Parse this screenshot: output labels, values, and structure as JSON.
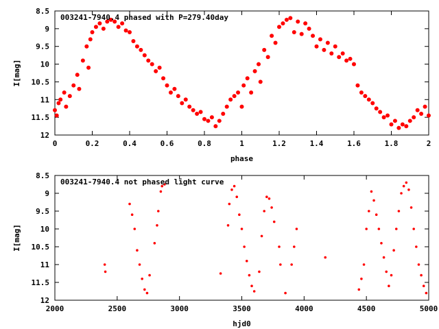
{
  "chart_data": [
    {
      "type": "scatter",
      "title": "003241-7940.4 phased with P=279.40day",
      "xlabel": "phase",
      "ylabel": "I[mag]",
      "xlim": [
        0,
        2
      ],
      "ylim": [
        12,
        8.5
      ],
      "y_inverted": true,
      "xticks": [
        "0",
        "0.2",
        "0.4",
        "0.6",
        "0.8",
        "1",
        "1.2",
        "1.4",
        "1.6",
        "1.8",
        "2"
      ],
      "yticks": [
        "8.5",
        "9",
        "9.5",
        "10",
        "10.5",
        "11",
        "11.5",
        "12"
      ],
      "marker_color": "#ff0000",
      "grid": false,
      "series": [
        {
          "points": [
            [
              0.0,
              11.3
            ],
            [
              0.01,
              11.45
            ],
            [
              0.02,
              11.1
            ],
            [
              0.03,
              11.0
            ],
            [
              0.05,
              10.8
            ],
            [
              0.06,
              11.2
            ],
            [
              0.08,
              10.9
            ],
            [
              0.1,
              10.6
            ],
            [
              0.12,
              10.3
            ],
            [
              0.13,
              10.7
            ],
            [
              0.15,
              9.9
            ],
            [
              0.17,
              9.5
            ],
            [
              0.18,
              10.1
            ],
            [
              0.19,
              9.3
            ],
            [
              0.2,
              9.1
            ],
            [
              0.22,
              8.95
            ],
            [
              0.24,
              8.85
            ],
            [
              0.26,
              9.0
            ],
            [
              0.28,
              8.8
            ],
            [
              0.3,
              8.75
            ],
            [
              0.32,
              8.8
            ],
            [
              0.34,
              8.95
            ],
            [
              0.36,
              8.85
            ],
            [
              0.38,
              9.05
            ],
            [
              0.4,
              9.1
            ],
            [
              0.42,
              9.35
            ],
            [
              0.44,
              9.5
            ],
            [
              0.46,
              9.6
            ],
            [
              0.48,
              9.75
            ],
            [
              0.5,
              9.9
            ],
            [
              0.52,
              10.0
            ],
            [
              0.54,
              10.2
            ],
            [
              0.56,
              10.1
            ],
            [
              0.58,
              10.4
            ],
            [
              0.6,
              10.6
            ],
            [
              0.62,
              10.8
            ],
            [
              0.64,
              10.7
            ],
            [
              0.66,
              10.9
            ],
            [
              0.68,
              11.1
            ],
            [
              0.7,
              11.0
            ],
            [
              0.72,
              11.2
            ],
            [
              0.74,
              11.3
            ],
            [
              0.76,
              11.4
            ],
            [
              0.78,
              11.35
            ],
            [
              0.8,
              11.55
            ],
            [
              0.82,
              11.6
            ],
            [
              0.84,
              11.5
            ],
            [
              0.86,
              11.75
            ],
            [
              0.88,
              11.6
            ],
            [
              0.9,
              11.4
            ],
            [
              0.92,
              11.2
            ],
            [
              0.94,
              11.0
            ],
            [
              0.96,
              10.9
            ],
            [
              0.98,
              10.8
            ],
            [
              1.0,
              11.2
            ],
            [
              1.01,
              10.6
            ],
            [
              1.03,
              10.4
            ],
            [
              1.05,
              10.8
            ],
            [
              1.07,
              10.2
            ],
            [
              1.09,
              10.0
            ],
            [
              1.1,
              10.5
            ],
            [
              1.12,
              9.6
            ],
            [
              1.14,
              9.8
            ],
            [
              1.16,
              9.2
            ],
            [
              1.18,
              9.4
            ],
            [
              1.2,
              8.95
            ],
            [
              1.22,
              8.85
            ],
            [
              1.24,
              8.75
            ],
            [
              1.26,
              8.7
            ],
            [
              1.28,
              9.1
            ],
            [
              1.3,
              8.8
            ],
            [
              1.32,
              9.15
            ],
            [
              1.34,
              8.85
            ],
            [
              1.36,
              9.0
            ],
            [
              1.38,
              9.2
            ],
            [
              1.4,
              9.5
            ],
            [
              1.42,
              9.3
            ],
            [
              1.44,
              9.6
            ],
            [
              1.46,
              9.4
            ],
            [
              1.48,
              9.7
            ],
            [
              1.5,
              9.5
            ],
            [
              1.52,
              9.8
            ],
            [
              1.54,
              9.7
            ],
            [
              1.56,
              9.9
            ],
            [
              1.58,
              9.85
            ],
            [
              1.6,
              10.0
            ],
            [
              1.62,
              10.6
            ],
            [
              1.64,
              10.8
            ],
            [
              1.66,
              10.9
            ],
            [
              1.68,
              11.0
            ],
            [
              1.7,
              11.1
            ],
            [
              1.72,
              11.25
            ],
            [
              1.74,
              11.35
            ],
            [
              1.76,
              11.5
            ],
            [
              1.78,
              11.45
            ],
            [
              1.8,
              11.7
            ],
            [
              1.82,
              11.6
            ],
            [
              1.84,
              11.8
            ],
            [
              1.86,
              11.7
            ],
            [
              1.88,
              11.75
            ],
            [
              1.9,
              11.6
            ],
            [
              1.92,
              11.5
            ],
            [
              1.94,
              11.3
            ],
            [
              1.96,
              11.4
            ],
            [
              1.98,
              11.2
            ],
            [
              2.0,
              11.45
            ]
          ]
        }
      ]
    },
    {
      "type": "scatter",
      "title": "003241-7940.4 not phased light curve",
      "xlabel": "hjd0",
      "ylabel": "I[mag]",
      "xlim": [
        2000,
        5000
      ],
      "ylim": [
        12,
        8.5
      ],
      "y_inverted": true,
      "xticks": [
        "2000",
        "2500",
        "3000",
        "3500",
        "4000",
        "4500",
        "5000"
      ],
      "yticks": [
        "8.5",
        "9",
        "9.5",
        "10",
        "10.5",
        "11",
        "11.5",
        "12"
      ],
      "marker_color": "#ff0000",
      "grid": false,
      "series": [
        {
          "points": [
            [
              2400,
              11.0
            ],
            [
              2405,
              11.2
            ],
            [
              2600,
              9.3
            ],
            [
              2620,
              9.6
            ],
            [
              2640,
              10.0
            ],
            [
              2660,
              10.6
            ],
            [
              2680,
              11.0
            ],
            [
              2700,
              11.4
            ],
            [
              2720,
              11.7
            ],
            [
              2740,
              11.8
            ],
            [
              2760,
              11.3
            ],
            [
              2800,
              10.4
            ],
            [
              2820,
              9.9
            ],
            [
              2830,
              9.5
            ],
            [
              2850,
              8.95
            ],
            [
              2860,
              8.8
            ],
            [
              2880,
              8.75
            ],
            [
              3330,
              11.25
            ],
            [
              3390,
              9.9
            ],
            [
              3400,
              9.3
            ],
            [
              3420,
              8.9
            ],
            [
              3440,
              8.8
            ],
            [
              3460,
              9.1
            ],
            [
              3480,
              9.6
            ],
            [
              3500,
              10.0
            ],
            [
              3520,
              10.5
            ],
            [
              3540,
              10.9
            ],
            [
              3560,
              11.3
            ],
            [
              3580,
              11.6
            ],
            [
              3600,
              11.75
            ],
            [
              3640,
              11.2
            ],
            [
              3660,
              10.2
            ],
            [
              3680,
              9.5
            ],
            [
              3700,
              9.1
            ],
            [
              3720,
              9.15
            ],
            [
              3740,
              9.4
            ],
            [
              3760,
              9.8
            ],
            [
              3800,
              10.5
            ],
            [
              3810,
              11.0
            ],
            [
              3850,
              11.8
            ],
            [
              3900,
              11.0
            ],
            [
              3920,
              10.5
            ],
            [
              3940,
              10.0
            ],
            [
              4170,
              10.8
            ],
            [
              4440,
              11.7
            ],
            [
              4460,
              11.4
            ],
            [
              4480,
              11.0
            ],
            [
              4500,
              10.0
            ],
            [
              4520,
              9.5
            ],
            [
              4540,
              8.95
            ],
            [
              4560,
              9.2
            ],
            [
              4580,
              9.6
            ],
            [
              4600,
              10.0
            ],
            [
              4620,
              10.4
            ],
            [
              4640,
              10.8
            ],
            [
              4660,
              11.2
            ],
            [
              4680,
              11.6
            ],
            [
              4700,
              11.3
            ],
            [
              4720,
              10.6
            ],
            [
              4740,
              10.0
            ],
            [
              4760,
              9.5
            ],
            [
              4780,
              9.0
            ],
            [
              4800,
              8.8
            ],
            [
              4820,
              8.7
            ],
            [
              4840,
              8.9
            ],
            [
              4860,
              9.4
            ],
            [
              4880,
              10.0
            ],
            [
              4900,
              10.5
            ],
            [
              4920,
              11.0
            ],
            [
              4940,
              11.3
            ],
            [
              4960,
              11.6
            ],
            [
              4980,
              11.8
            ]
          ]
        }
      ]
    }
  ]
}
